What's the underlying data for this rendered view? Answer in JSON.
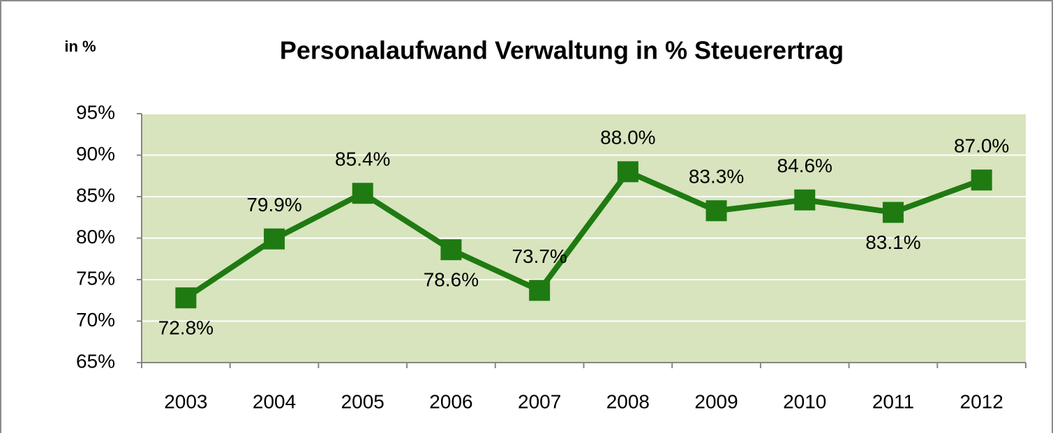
{
  "chart_data": {
    "type": "line",
    "title": "Personalaufwand Verwaltung in % Steuerertrag",
    "y_axis_label": "in %",
    "categories": [
      "2003",
      "2004",
      "2005",
      "2006",
      "2007",
      "2008",
      "2009",
      "2010",
      "2011",
      "2012"
    ],
    "series": [
      {
        "name": "Personalaufwand Verwaltung",
        "color": "#1f7a12",
        "values": [
          72.8,
          79.9,
          85.4,
          78.6,
          73.7,
          88.0,
          83.3,
          84.6,
          83.1,
          87.0
        ],
        "value_labels": [
          "72.8%",
          "79.9%",
          "85.4%",
          "78.6%",
          "73.7%",
          "88.0%",
          "83.3%",
          "84.6%",
          "83.1%",
          "87.0%"
        ]
      }
    ],
    "ylim": [
      65,
      95
    ],
    "yticks": [
      {
        "value": 65,
        "label": "65%"
      },
      {
        "value": 70,
        "label": "70%"
      },
      {
        "value": 75,
        "label": "75%"
      },
      {
        "value": 80,
        "label": "80%"
      },
      {
        "value": 85,
        "label": "85%"
      },
      {
        "value": 90,
        "label": "90%"
      },
      {
        "value": 95,
        "label": "95%"
      }
    ],
    "grid": true,
    "plot_background": "#d7e4bd"
  }
}
